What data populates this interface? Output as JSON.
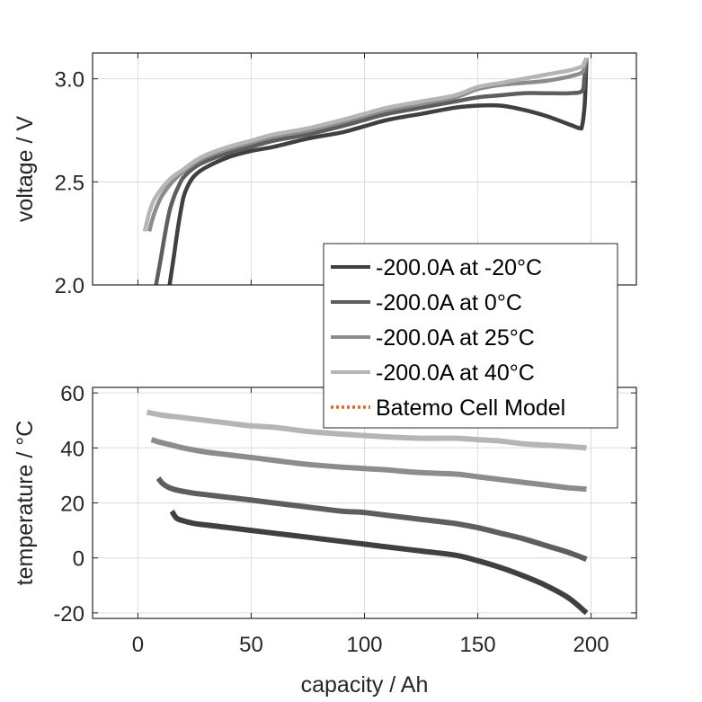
{
  "chart_data": [
    {
      "type": "line",
      "panel": "top",
      "title": "",
      "xlabel": "",
      "ylabel": "voltage / V",
      "xlim": [
        -20,
        220
      ],
      "ylim": [
        2.0,
        3.125
      ],
      "xticks": [
        0,
        50,
        100,
        150,
        200
      ],
      "yticks": [
        2.0,
        2.5,
        3.0
      ],
      "ytick_labels": [
        "2.0",
        "2.5",
        "3.0"
      ],
      "grid": true,
      "series": [
        {
          "name": "-200.0A at -20°C",
          "color": "#404040",
          "x": [
            14,
            16,
            18,
            20,
            22,
            25,
            30,
            40,
            50,
            60,
            75,
            90,
            100,
            110,
            125,
            140,
            150,
            160,
            170,
            180,
            190,
            195,
            196,
            197,
            197.5,
            198
          ],
          "y": [
            2.0,
            2.15,
            2.3,
            2.42,
            2.48,
            2.53,
            2.57,
            2.62,
            2.65,
            2.67,
            2.71,
            2.74,
            2.77,
            2.8,
            2.83,
            2.86,
            2.87,
            2.87,
            2.85,
            2.82,
            2.78,
            2.76,
            2.77,
            2.85,
            2.95,
            3.1
          ]
        },
        {
          "name": "-200.0A at 0°C",
          "color": "#5e5e5e",
          "x": [
            8,
            10,
            12,
            14,
            16,
            18,
            20,
            25,
            30,
            40,
            50,
            60,
            75,
            90,
            100,
            110,
            125,
            140,
            150,
            160,
            170,
            180,
            190,
            196,
            197,
            198
          ],
          "y": [
            2.0,
            2.12,
            2.25,
            2.36,
            2.43,
            2.48,
            2.52,
            2.57,
            2.6,
            2.64,
            2.67,
            2.7,
            2.73,
            2.77,
            2.8,
            2.83,
            2.86,
            2.89,
            2.91,
            2.92,
            2.93,
            2.93,
            2.93,
            2.94,
            3.0,
            3.1
          ]
        },
        {
          "name": "-200.0A at 25°C",
          "color": "#8c8c8c",
          "x": [
            5,
            7,
            10,
            13,
            16,
            20,
            25,
            30,
            40,
            50,
            60,
            75,
            90,
            100,
            110,
            125,
            140,
            150,
            160,
            170,
            180,
            190,
            196,
            197,
            198
          ],
          "y": [
            2.26,
            2.34,
            2.42,
            2.47,
            2.51,
            2.55,
            2.59,
            2.62,
            2.66,
            2.69,
            2.72,
            2.75,
            2.79,
            2.82,
            2.85,
            2.88,
            2.91,
            2.95,
            2.97,
            2.98,
            2.99,
            3.01,
            3.03,
            3.06,
            3.1
          ]
        },
        {
          "name": "-200.0A at 40°C",
          "color": "#b5b5b5",
          "x": [
            3,
            5,
            7,
            10,
            13,
            16,
            20,
            25,
            30,
            40,
            50,
            60,
            75,
            90,
            100,
            110,
            125,
            140,
            150,
            160,
            170,
            180,
            190,
            196,
            197,
            198
          ],
          "y": [
            2.26,
            2.35,
            2.41,
            2.46,
            2.5,
            2.53,
            2.56,
            2.6,
            2.63,
            2.67,
            2.7,
            2.73,
            2.76,
            2.8,
            2.83,
            2.86,
            2.89,
            2.92,
            2.96,
            2.98,
            3.0,
            3.02,
            3.04,
            3.06,
            3.08,
            3.1
          ]
        }
      ]
    },
    {
      "type": "line",
      "panel": "bottom",
      "title": "",
      "xlabel": "capacity / Ah",
      "ylabel": "temperature / °C",
      "xlim": [
        -20,
        220
      ],
      "ylim": [
        -22,
        62
      ],
      "xticks": [
        0,
        50,
        100,
        150,
        200
      ],
      "xtick_labels": [
        "0",
        "50",
        "100",
        "150",
        "200"
      ],
      "yticks": [
        -20,
        0,
        20,
        40,
        60
      ],
      "ytick_labels": [
        "-20",
        "0",
        "20",
        "40",
        "60"
      ],
      "grid": true,
      "series": [
        {
          "name": "-200.0A at -20°C",
          "color": "#404040",
          "x": [
            15,
            17,
            20,
            25,
            30,
            40,
            50,
            60,
            75,
            90,
            100,
            110,
            125,
            140,
            150,
            160,
            170,
            180,
            190,
            198
          ],
          "y": [
            17,
            14.5,
            13.5,
            12.5,
            12,
            11,
            10,
            9,
            7.5,
            6,
            5,
            4,
            2.5,
            1,
            -1,
            -3.5,
            -6.5,
            -10,
            -14.5,
            -20
          ]
        },
        {
          "name": "-200.0A at 0°C",
          "color": "#5e5e5e",
          "x": [
            9,
            11,
            14,
            18,
            25,
            30,
            40,
            50,
            60,
            75,
            90,
            100,
            110,
            125,
            140,
            150,
            160,
            170,
            180,
            190,
            198
          ],
          "y": [
            29,
            27,
            25.5,
            24.5,
            23.5,
            23,
            22,
            21,
            20,
            18.5,
            17,
            16.5,
            15.5,
            14,
            12.5,
            11,
            9,
            7,
            4.5,
            2,
            -0.5
          ]
        },
        {
          "name": "-200.0A at 25°C",
          "color": "#8c8c8c",
          "x": [
            6,
            10,
            15,
            20,
            30,
            40,
            50,
            60,
            75,
            90,
            100,
            110,
            125,
            140,
            150,
            160,
            170,
            180,
            190,
            198
          ],
          "y": [
            43,
            42,
            41,
            40,
            38.5,
            37.5,
            36.5,
            35.5,
            34,
            33,
            32.5,
            32,
            31,
            30.5,
            29.5,
            28.5,
            27.5,
            26.5,
            25.5,
            25
          ]
        },
        {
          "name": "-200.0A at 40°C",
          "color": "#b5b5b5",
          "x": [
            4,
            10,
            20,
            30,
            40,
            50,
            60,
            75,
            90,
            100,
            110,
            125,
            140,
            150,
            160,
            170,
            180,
            190,
            198
          ],
          "y": [
            53,
            52,
            51,
            50,
            49,
            48,
            47.5,
            46,
            45,
            44.5,
            44,
            43.5,
            43.5,
            43,
            42.5,
            41.5,
            41,
            40.5,
            40
          ]
        }
      ]
    }
  ],
  "legend": {
    "placement": "center-right",
    "entries": [
      {
        "label": "-200.0A at -20°C",
        "color": "#404040",
        "style": "solid"
      },
      {
        "label": "-200.0A at 0°C",
        "color": "#5e5e5e",
        "style": "solid"
      },
      {
        "label": "-200.0A at 25°C",
        "color": "#8c8c8c",
        "style": "solid"
      },
      {
        "label": "-200.0A at 40°C",
        "color": "#b5b5b5",
        "style": "solid"
      },
      {
        "label": "Batemo Cell Model",
        "color": "#e8601c",
        "style": "dotted"
      }
    ]
  }
}
